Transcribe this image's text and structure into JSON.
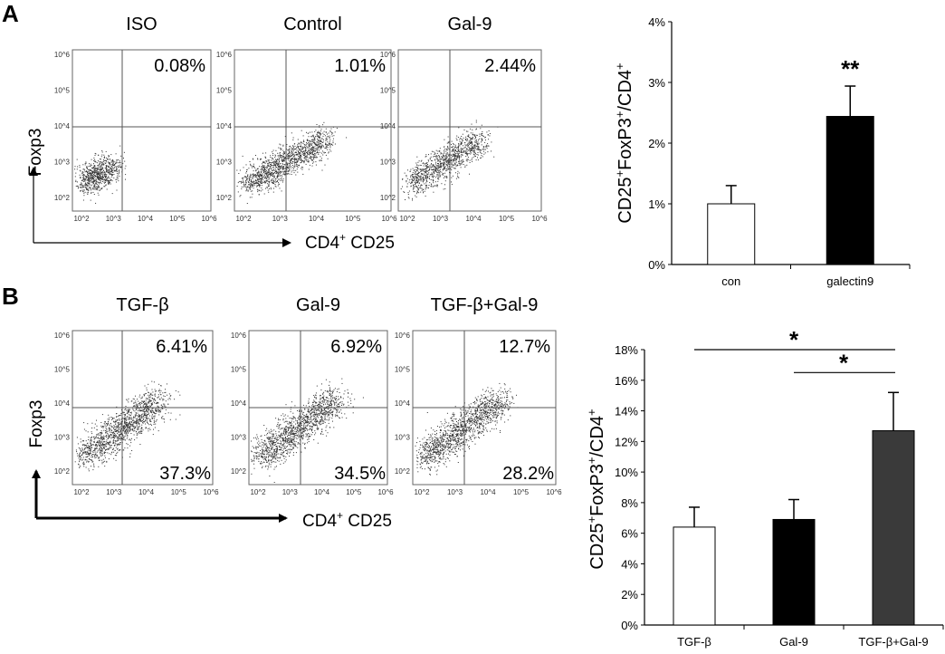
{
  "panel_labels": [
    "A",
    "B"
  ],
  "flow_tick_labels": [
    "10^2",
    "10^3",
    "10^4",
    "10^5",
    "10^6"
  ],
  "flow_axes": {
    "y_label": "Foxp3",
    "x_label_main": "CD4",
    "x_label_sup": "+",
    "x_label_rest": " CD25"
  },
  "flow_panels": [
    {
      "title": "ISO",
      "upper_right": "0.08%",
      "lower_right": "",
      "population_intensity": 0.55
    },
    {
      "title": "Control",
      "upper_right": "1.01%",
      "lower_right": "",
      "population_intensity": 1.0
    },
    {
      "title": "Gal-9",
      "upper_right": "2.44%",
      "lower_right": "",
      "population_intensity": 0.8
    },
    {
      "title": "TGF-β",
      "upper_right": "6.41%",
      "lower_right": "37.3%",
      "population_intensity": 1.0
    },
    {
      "title": "Gal-9",
      "upper_right": "6.92%",
      "lower_right": "34.5%",
      "population_intensity": 1.0
    },
    {
      "title": "TGF-β+Gal-9",
      "upper_right": "12.7%",
      "lower_right": "28.2%",
      "population_intensity": 1.0
    }
  ],
  "bar_ylabel": {
    "p1": "CD25",
    "s1": "+",
    "p2": "FoxP3",
    "s2": "+",
    "p3": "/CD4",
    "s3": "+"
  },
  "chart_data": [
    {
      "type": "bar",
      "categories": [
        "con",
        "galectin9"
      ],
      "values": [
        1.0,
        2.44
      ],
      "errors": [
        0.3,
        0.5
      ],
      "colors": [
        "#ffffff",
        "#000000"
      ],
      "ylim": [
        0,
        4
      ],
      "yticks": [
        "0%",
        "1%",
        "2%",
        "3%",
        "4%"
      ],
      "significance": [
        {
          "label": "**",
          "bar": 1
        }
      ]
    },
    {
      "type": "bar",
      "categories": [
        "TGF-β",
        "Gal-9",
        "TGF-β+Gal-9"
      ],
      "values": [
        6.4,
        6.9,
        12.7
      ],
      "errors": [
        1.3,
        1.3,
        2.5
      ],
      "colors": [
        "#ffffff",
        "#000000",
        "#3a3a3a"
      ],
      "ylim": [
        0,
        18
      ],
      "yticks": [
        "0%",
        "2%",
        "4%",
        "6%",
        "8%",
        "10%",
        "12%",
        "14%",
        "16%",
        "18%"
      ],
      "significance": [
        {
          "label": "*",
          "from": 0,
          "to": 2,
          "level": 18
        },
        {
          "label": "*",
          "from": 1,
          "to": 2,
          "level": 16.5
        }
      ]
    }
  ]
}
